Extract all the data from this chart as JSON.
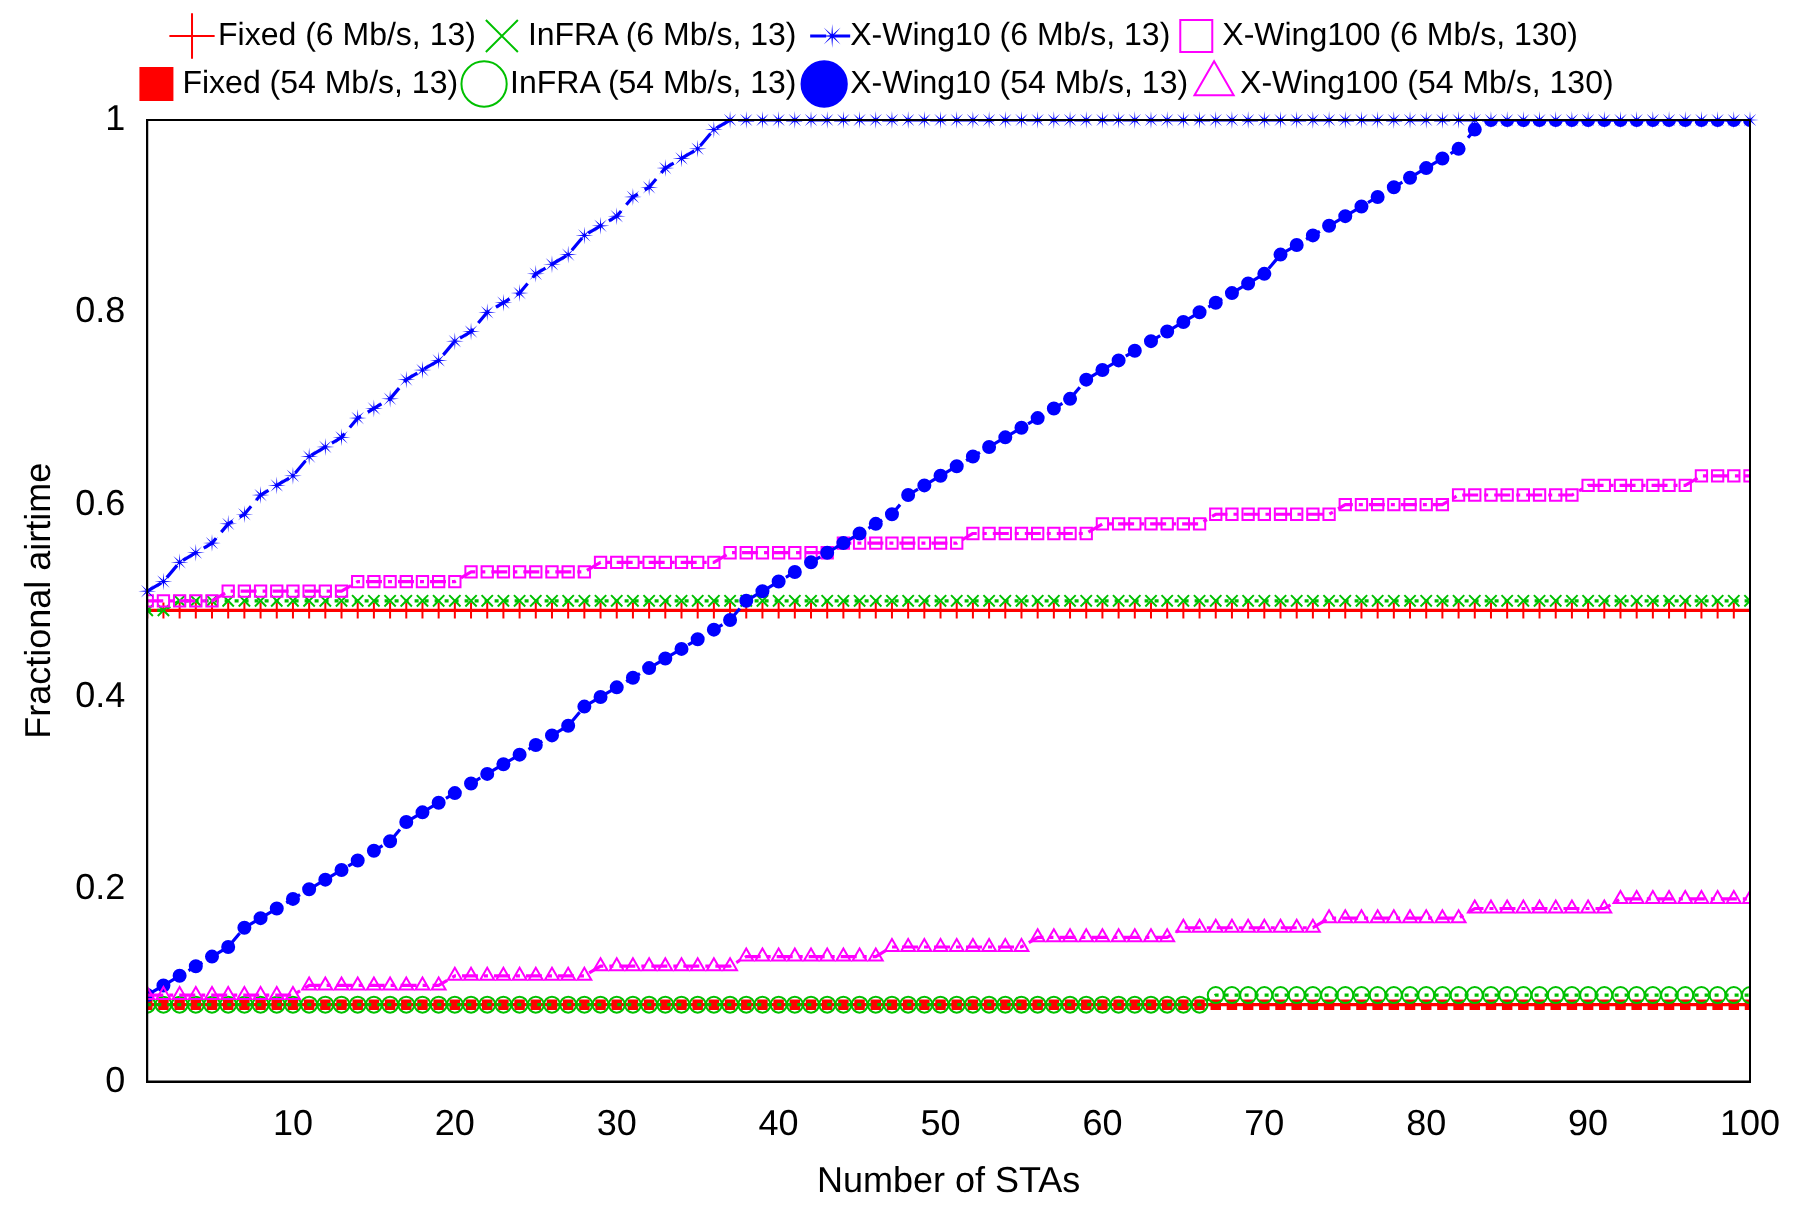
{
  "chart_data": {
    "type": "line",
    "xlabel": "Number of STAs",
    "ylabel": "Fractional airtime",
    "x": [
      1,
      2,
      3,
      4,
      5,
      6,
      7,
      8,
      9,
      10,
      11,
      12,
      13,
      14,
      15,
      16,
      17,
      18,
      19,
      20,
      21,
      22,
      23,
      24,
      25,
      26,
      27,
      28,
      29,
      30,
      31,
      32,
      33,
      34,
      35,
      36,
      37,
      38,
      39,
      40,
      41,
      42,
      43,
      44,
      45,
      46,
      47,
      48,
      49,
      50,
      51,
      52,
      53,
      54,
      55,
      56,
      57,
      58,
      59,
      60,
      61,
      62,
      63,
      64,
      65,
      66,
      67,
      68,
      69,
      70,
      71,
      72,
      73,
      74,
      75,
      76,
      77,
      78,
      79,
      80,
      81,
      82,
      83,
      84,
      85,
      86,
      87,
      88,
      89,
      90,
      91,
      92,
      93,
      94,
      95,
      96,
      97,
      98,
      99,
      100
    ],
    "xlim": [
      1,
      100
    ],
    "xticks": [
      10,
      20,
      30,
      40,
      50,
      60,
      70,
      80,
      90,
      100
    ],
    "ylim": [
      0,
      1
    ],
    "yticks": [
      0,
      0.2,
      0.4,
      0.6,
      0.8,
      1
    ],
    "grid": false,
    "legend": "top",
    "series": [
      {
        "name": "Fixed (6 Mb/s, 13)",
        "color": "#ff0000",
        "marker": "cross",
        "line_style": "solid",
        "values": [
          0.49,
          0.49,
          0.49,
          0.49,
          0.49,
          0.49,
          0.49,
          0.49,
          0.49,
          0.49,
          0.49,
          0.49,
          0.49,
          0.49,
          0.49,
          0.49,
          0.49,
          0.49,
          0.49,
          0.49,
          0.49,
          0.49,
          0.49,
          0.49,
          0.49,
          0.49,
          0.49,
          0.49,
          0.49,
          0.49,
          0.49,
          0.49,
          0.49,
          0.49,
          0.49,
          0.49,
          0.49,
          0.49,
          0.49,
          0.49,
          0.49,
          0.49,
          0.49,
          0.49,
          0.49,
          0.49,
          0.49,
          0.49,
          0.49,
          0.49,
          0.49,
          0.49,
          0.49,
          0.49,
          0.49,
          0.49,
          0.49,
          0.49,
          0.49,
          0.49,
          0.49,
          0.49,
          0.49,
          0.49,
          0.49,
          0.49,
          0.49,
          0.49,
          0.49,
          0.49,
          0.49,
          0.49,
          0.49,
          0.49,
          0.49,
          0.49,
          0.49,
          0.49,
          0.49,
          0.49,
          0.49,
          0.49,
          0.49,
          0.49,
          0.49,
          0.49,
          0.49,
          0.49,
          0.49,
          0.49,
          0.49,
          0.49,
          0.49,
          0.49,
          0.49,
          0.49,
          0.49,
          0.49,
          0.49,
          0.49
        ]
      },
      {
        "name": "InFRA (6 Mb/s, 13)",
        "color": "#00c000",
        "marker": "x",
        "line_style": "dotted",
        "values": [
          0.49,
          0.49,
          0.5,
          0.5,
          0.5,
          0.5,
          0.5,
          0.5,
          0.5,
          0.5,
          0.5,
          0.5,
          0.5,
          0.5,
          0.5,
          0.5,
          0.5,
          0.5,
          0.5,
          0.5,
          0.5,
          0.5,
          0.5,
          0.5,
          0.5,
          0.5,
          0.5,
          0.5,
          0.5,
          0.5,
          0.5,
          0.5,
          0.5,
          0.5,
          0.5,
          0.5,
          0.5,
          0.5,
          0.5,
          0.5,
          0.5,
          0.5,
          0.5,
          0.5,
          0.5,
          0.5,
          0.5,
          0.5,
          0.5,
          0.5,
          0.5,
          0.5,
          0.5,
          0.5,
          0.5,
          0.5,
          0.5,
          0.5,
          0.5,
          0.5,
          0.5,
          0.5,
          0.5,
          0.5,
          0.5,
          0.5,
          0.5,
          0.5,
          0.5,
          0.5,
          0.5,
          0.5,
          0.5,
          0.5,
          0.5,
          0.5,
          0.5,
          0.5,
          0.5,
          0.5,
          0.5,
          0.5,
          0.5,
          0.5,
          0.5,
          0.5,
          0.5,
          0.5,
          0.5,
          0.5,
          0.5,
          0.5,
          0.5,
          0.5,
          0.5,
          0.5,
          0.5,
          0.5,
          0.5,
          0.5
        ]
      },
      {
        "name": "X-Wing10 (6 Mb/s, 13)",
        "color": "#0000ff",
        "marker": "star",
        "line_style": "dashed",
        "values": [
          0.51,
          0.52,
          0.54,
          0.55,
          0.56,
          0.58,
          0.59,
          0.61,
          0.62,
          0.63,
          0.65,
          0.66,
          0.67,
          0.69,
          0.7,
          0.71,
          0.73,
          0.74,
          0.75,
          0.77,
          0.78,
          0.8,
          0.81,
          0.82,
          0.84,
          0.85,
          0.86,
          0.88,
          0.89,
          0.9,
          0.92,
          0.93,
          0.95,
          0.96,
          0.97,
          0.99,
          1,
          1,
          1,
          1,
          1,
          1,
          1,
          1,
          1,
          1,
          1,
          1,
          1,
          1,
          1,
          1,
          1,
          1,
          1,
          1,
          1,
          1,
          1,
          1,
          1,
          1,
          1,
          1,
          1,
          1,
          1,
          1,
          1,
          1,
          1,
          1,
          1,
          1,
          1,
          1,
          1,
          1,
          1,
          1,
          1,
          1,
          1,
          1,
          1,
          1,
          1,
          1,
          1,
          1,
          1,
          1,
          1,
          1,
          1,
          1,
          1,
          1,
          1,
          1
        ]
      },
      {
        "name": "X-Wing100 (6 Mb/s, 130)",
        "color": "#ff00ff",
        "marker": "square-open",
        "line_style": "dashdot",
        "values": [
          0.5,
          0.5,
          0.5,
          0.5,
          0.5,
          0.51,
          0.51,
          0.51,
          0.51,
          0.51,
          0.51,
          0.51,
          0.51,
          0.52,
          0.52,
          0.52,
          0.52,
          0.52,
          0.52,
          0.52,
          0.53,
          0.53,
          0.53,
          0.53,
          0.53,
          0.53,
          0.53,
          0.53,
          0.54,
          0.54,
          0.54,
          0.54,
          0.54,
          0.54,
          0.54,
          0.54,
          0.55,
          0.55,
          0.55,
          0.55,
          0.55,
          0.55,
          0.55,
          0.56,
          0.56,
          0.56,
          0.56,
          0.56,
          0.56,
          0.56,
          0.56,
          0.57,
          0.57,
          0.57,
          0.57,
          0.57,
          0.57,
          0.57,
          0.57,
          0.58,
          0.58,
          0.58,
          0.58,
          0.58,
          0.58,
          0.58,
          0.59,
          0.59,
          0.59,
          0.59,
          0.59,
          0.59,
          0.59,
          0.59,
          0.6,
          0.6,
          0.6,
          0.6,
          0.6,
          0.6,
          0.6,
          0.61,
          0.61,
          0.61,
          0.61,
          0.61,
          0.61,
          0.61,
          0.61,
          0.62,
          0.62,
          0.62,
          0.62,
          0.62,
          0.62,
          0.62,
          0.63,
          0.63,
          0.63,
          0.63
        ]
      },
      {
        "name": "Fixed (54 Mb/s, 13)",
        "color": "#ff0000",
        "marker": "square",
        "line_style": "solid",
        "values": [
          0.08,
          0.08,
          0.08,
          0.08,
          0.08,
          0.08,
          0.08,
          0.08,
          0.08,
          0.08,
          0.08,
          0.08,
          0.08,
          0.08,
          0.08,
          0.08,
          0.08,
          0.08,
          0.08,
          0.08,
          0.08,
          0.08,
          0.08,
          0.08,
          0.08,
          0.08,
          0.08,
          0.08,
          0.08,
          0.08,
          0.08,
          0.08,
          0.08,
          0.08,
          0.08,
          0.08,
          0.08,
          0.08,
          0.08,
          0.08,
          0.08,
          0.08,
          0.08,
          0.08,
          0.08,
          0.08,
          0.08,
          0.08,
          0.08,
          0.08,
          0.08,
          0.08,
          0.08,
          0.08,
          0.08,
          0.08,
          0.08,
          0.08,
          0.08,
          0.08,
          0.08,
          0.08,
          0.08,
          0.08,
          0.08,
          0.08,
          0.08,
          0.08,
          0.08,
          0.08,
          0.08,
          0.08,
          0.08,
          0.08,
          0.08,
          0.08,
          0.08,
          0.08,
          0.08,
          0.08,
          0.08,
          0.08,
          0.08,
          0.08,
          0.08,
          0.08,
          0.08,
          0.08,
          0.08,
          0.08,
          0.08,
          0.08,
          0.08,
          0.08,
          0.08,
          0.08,
          0.08,
          0.08,
          0.08,
          0.08
        ]
      },
      {
        "name": "InFRA (54 Mb/s, 13)",
        "color": "#00c000",
        "marker": "circle-open",
        "line_style": "dotted",
        "values": [
          0.08,
          0.08,
          0.08,
          0.08,
          0.08,
          0.08,
          0.08,
          0.08,
          0.08,
          0.08,
          0.08,
          0.08,
          0.08,
          0.08,
          0.08,
          0.08,
          0.08,
          0.08,
          0.08,
          0.08,
          0.08,
          0.08,
          0.08,
          0.08,
          0.08,
          0.08,
          0.08,
          0.08,
          0.08,
          0.08,
          0.08,
          0.08,
          0.08,
          0.08,
          0.08,
          0.08,
          0.08,
          0.08,
          0.08,
          0.08,
          0.08,
          0.08,
          0.08,
          0.08,
          0.08,
          0.08,
          0.08,
          0.08,
          0.08,
          0.08,
          0.08,
          0.08,
          0.08,
          0.08,
          0.08,
          0.08,
          0.08,
          0.08,
          0.08,
          0.08,
          0.08,
          0.08,
          0.08,
          0.08,
          0.08,
          0.08,
          0.09,
          0.09,
          0.09,
          0.09,
          0.09,
          0.09,
          0.09,
          0.09,
          0.09,
          0.09,
          0.09,
          0.09,
          0.09,
          0.09,
          0.09,
          0.09,
          0.09,
          0.09,
          0.09,
          0.09,
          0.09,
          0.09,
          0.09,
          0.09,
          0.09,
          0.09,
          0.09,
          0.09,
          0.09,
          0.09,
          0.09,
          0.09,
          0.09,
          0.09
        ]
      },
      {
        "name": "X-Wing10 (54 Mb/s, 13)",
        "color": "#0000ff",
        "marker": "circle",
        "line_style": "dashed",
        "values": [
          0.09,
          0.1,
          0.11,
          0.12,
          0.13,
          0.14,
          0.16,
          0.17,
          0.18,
          0.19,
          0.2,
          0.21,
          0.22,
          0.23,
          0.24,
          0.25,
          0.27,
          0.28,
          0.29,
          0.3,
          0.31,
          0.32,
          0.33,
          0.34,
          0.35,
          0.36,
          0.37,
          0.39,
          0.4,
          0.41,
          0.42,
          0.43,
          0.44,
          0.45,
          0.46,
          0.47,
          0.48,
          0.5,
          0.51,
          0.52,
          0.53,
          0.54,
          0.55,
          0.56,
          0.57,
          0.58,
          0.59,
          0.61,
          0.62,
          0.63,
          0.64,
          0.65,
          0.66,
          0.67,
          0.68,
          0.69,
          0.7,
          0.71,
          0.73,
          0.74,
          0.75,
          0.76,
          0.77,
          0.78,
          0.79,
          0.8,
          0.81,
          0.82,
          0.83,
          0.84,
          0.86,
          0.87,
          0.88,
          0.89,
          0.9,
          0.91,
          0.92,
          0.93,
          0.94,
          0.95,
          0.96,
          0.97,
          0.99,
          1,
          1,
          1,
          1,
          1,
          1,
          1,
          1,
          1,
          1,
          1,
          1,
          1,
          1,
          1,
          1,
          1
        ]
      },
      {
        "name": "X-Wing100 (54 Mb/s, 130)",
        "color": "#ff00ff",
        "marker": "triangle-open",
        "line_style": "dashdot",
        "values": [
          0.09,
          0.09,
          0.09,
          0.09,
          0.09,
          0.09,
          0.09,
          0.09,
          0.09,
          0.09,
          0.1,
          0.1,
          0.1,
          0.1,
          0.1,
          0.1,
          0.1,
          0.1,
          0.1,
          0.11,
          0.11,
          0.11,
          0.11,
          0.11,
          0.11,
          0.11,
          0.11,
          0.11,
          0.12,
          0.12,
          0.12,
          0.12,
          0.12,
          0.12,
          0.12,
          0.12,
          0.12,
          0.13,
          0.13,
          0.13,
          0.13,
          0.13,
          0.13,
          0.13,
          0.13,
          0.13,
          0.14,
          0.14,
          0.14,
          0.14,
          0.14,
          0.14,
          0.14,
          0.14,
          0.14,
          0.15,
          0.15,
          0.15,
          0.15,
          0.15,
          0.15,
          0.15,
          0.15,
          0.15,
          0.16,
          0.16,
          0.16,
          0.16,
          0.16,
          0.16,
          0.16,
          0.16,
          0.16,
          0.17,
          0.17,
          0.17,
          0.17,
          0.17,
          0.17,
          0.17,
          0.17,
          0.17,
          0.18,
          0.18,
          0.18,
          0.18,
          0.18,
          0.18,
          0.18,
          0.18,
          0.18,
          0.19,
          0.19,
          0.19,
          0.19,
          0.19,
          0.19,
          0.19,
          0.19,
          0.19
        ]
      }
    ]
  }
}
